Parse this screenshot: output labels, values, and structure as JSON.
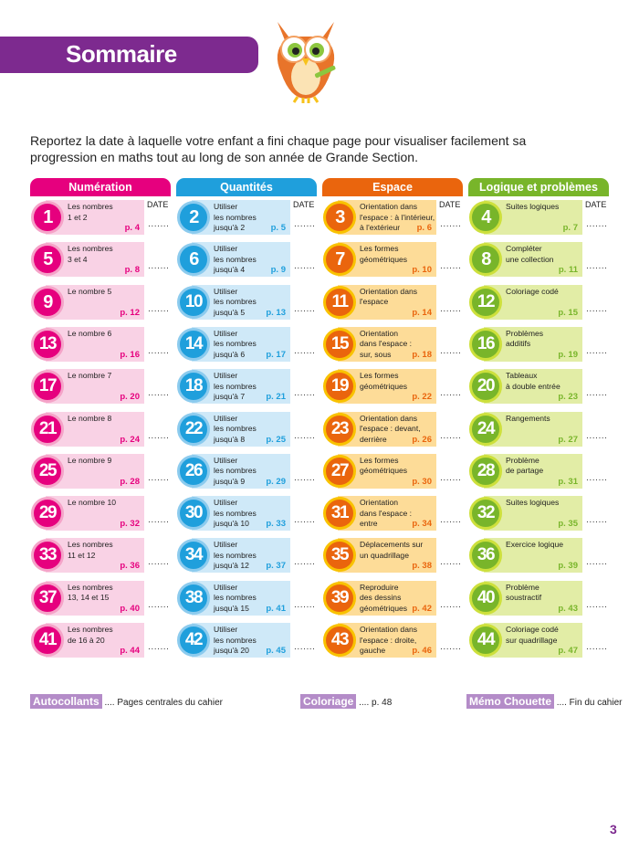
{
  "title": "Sommaire",
  "intro": "Reportez la date à laquelle votre enfant a fini chaque page pour visualiser facilement sa progression en maths tout au long de son année de Grande Section.",
  "date_label": "DATE",
  "date_placeholder": ".......",
  "columns": [
    {
      "title": "Numération",
      "color": "#e6007e",
      "light": "#f9d2e5",
      "ring": "#f5a3c8",
      "items": [
        {
          "num": "1",
          "text": "Les nombres\n1 et 2",
          "page": "p. 4"
        },
        {
          "num": "5",
          "text": "Les nombres\n3 et 4",
          "page": "p. 8"
        },
        {
          "num": "9",
          "text": "Le nombre 5",
          "page": "p. 12"
        },
        {
          "num": "13",
          "text": "Le nombre 6",
          "page": "p. 16"
        },
        {
          "num": "17",
          "text": "Le nombre 7",
          "page": "p. 20"
        },
        {
          "num": "21",
          "text": "Le nombre 8",
          "page": "p. 24"
        },
        {
          "num": "25",
          "text": "Le nombre 9",
          "page": "p. 28"
        },
        {
          "num": "29",
          "text": "Le nombre 10",
          "page": "p. 32"
        },
        {
          "num": "33",
          "text": "Les nombres\n11 et 12",
          "page": "p. 36"
        },
        {
          "num": "37",
          "text": "Les nombres\n13, 14 et 15",
          "page": "p. 40"
        },
        {
          "num": "41",
          "text": "Les nombres\nde 16 à 20",
          "page": "p. 44"
        }
      ]
    },
    {
      "title": "Quantités",
      "color": "#1f9fdc",
      "light": "#cfe9f8",
      "ring": "#8ccbee",
      "items": [
        {
          "num": "2",
          "text": "Utiliser\nles nombres\njusqu'à 2",
          "page": "p. 5"
        },
        {
          "num": "6",
          "text": "Utiliser\nles nombres\njusqu'à 4",
          "page": "p. 9"
        },
        {
          "num": "10",
          "text": "Utiliser\nles nombres\njusqu'à 5",
          "page": "p. 13"
        },
        {
          "num": "14",
          "text": "Utiliser\nles nombres\njusqu'à 6",
          "page": "p. 17"
        },
        {
          "num": "18",
          "text": "Utiliser\nles nombres\njusqu'à 7",
          "page": "p. 21"
        },
        {
          "num": "22",
          "text": "Utiliser\nles nombres\njusqu'à 8",
          "page": "p. 25"
        },
        {
          "num": "26",
          "text": "Utiliser\nles nombres\njusqu'à 9",
          "page": "p. 29"
        },
        {
          "num": "30",
          "text": "Utiliser\nles nombres\njusqu'à 10",
          "page": "p. 33"
        },
        {
          "num": "34",
          "text": "Utiliser\nles nombres\njusqu'à 12",
          "page": "p. 37"
        },
        {
          "num": "38",
          "text": "Utiliser\nles nombres\njusqu'à 15",
          "page": "p. 41"
        },
        {
          "num": "42",
          "text": "Utiliser\nles nombres\njusqu'à 20",
          "page": "p. 45"
        }
      ]
    },
    {
      "title": "Espace",
      "color": "#ea650d",
      "light": "#fddc98",
      "ring": "#f9c200",
      "items": [
        {
          "num": "3",
          "text": "Orientation dans\nl'espace : à l'intérieur,\nà l'extérieur",
          "page": "p. 6"
        },
        {
          "num": "7",
          "text": "Les formes\ngéométriques",
          "page": "p. 10"
        },
        {
          "num": "11",
          "text": "Orientation dans\nl'espace",
          "page": "p. 14"
        },
        {
          "num": "15",
          "text": "Orientation\ndans l'espace :\nsur, sous",
          "page": "p. 18"
        },
        {
          "num": "19",
          "text": "Les formes\ngéométriques",
          "page": "p. 22"
        },
        {
          "num": "23",
          "text": "Orientation dans\nl'espace : devant,\nderrière",
          "page": "p. 26"
        },
        {
          "num": "27",
          "text": "Les formes\ngéométriques",
          "page": "p. 30"
        },
        {
          "num": "31",
          "text": "Orientation\ndans l'espace :\nentre",
          "page": "p. 34"
        },
        {
          "num": "35",
          "text": "Déplacements sur\nun quadrillage",
          "page": "p. 38"
        },
        {
          "num": "39",
          "text": "Reproduire\ndes dessins\ngéométriques",
          "page": "p. 42"
        },
        {
          "num": "43",
          "text": "Orientation dans\nl'espace : droite,\ngauche",
          "page": "p. 46"
        }
      ]
    },
    {
      "title": "Logique et problèmes",
      "color": "#78b52a",
      "light": "#e2eda6",
      "ring": "#cde03c",
      "items": [
        {
          "num": "4",
          "text": "Suites logiques",
          "page": "p. 7"
        },
        {
          "num": "8",
          "text": "Compléter\nune collection",
          "page": "p. 11"
        },
        {
          "num": "12",
          "text": "Coloriage codé",
          "page": "p. 15"
        },
        {
          "num": "16",
          "text": "Problèmes\nadditifs",
          "page": "p. 19"
        },
        {
          "num": "20",
          "text": "Tableaux\nà double entrée",
          "page": "p. 23"
        },
        {
          "num": "24",
          "text": "Rangements",
          "page": "p. 27"
        },
        {
          "num": "28",
          "text": "Problème\nde partage",
          "page": "p. 31"
        },
        {
          "num": "32",
          "text": "Suites logiques",
          "page": "p. 35"
        },
        {
          "num": "36",
          "text": "Exercice logique",
          "page": "p. 39"
        },
        {
          "num": "40",
          "text": "Problème\nsoustractif",
          "page": "p. 43"
        },
        {
          "num": "44",
          "text": "Coloriage codé\nsur quadrillage",
          "page": "p. 47"
        }
      ]
    }
  ],
  "footer": [
    {
      "tag": "Autocollants",
      "text": " .... Pages centrales du cahier"
    },
    {
      "tag": "Coloriage",
      "text": " .... p. 48"
    },
    {
      "tag": "Mémo Chouette",
      "text": " .... Fin du cahier"
    }
  ],
  "page_number": "3",
  "accent": "#7d2a8f"
}
